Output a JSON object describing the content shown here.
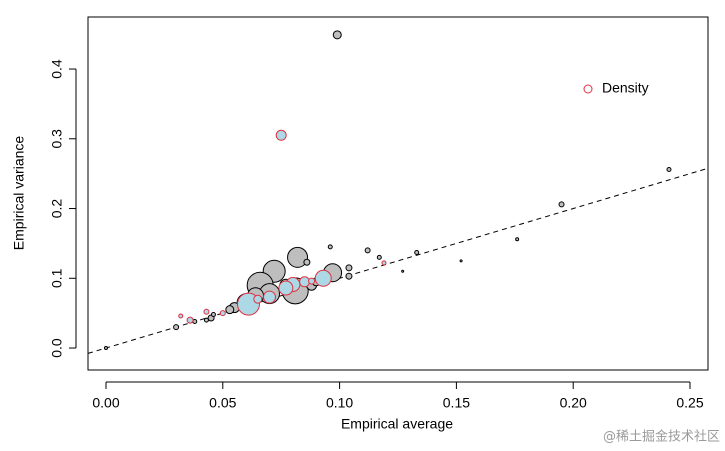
{
  "chart_data": {
    "type": "scatter",
    "x_label": "Empirical average",
    "y_label": "Empirical variance",
    "xlim": [
      -0.0077,
      0.2577
    ],
    "ylim": [
      -0.0315,
      0.4746
    ],
    "xticks": [
      {
        "value": 0,
        "label": "0.00"
      },
      0.05,
      {
        "value": 0.1,
        "label": "0.10"
      },
      0.15,
      {
        "value": 0.2,
        "label": "0.20"
      },
      0.25
    ],
    "yticks": [
      {
        "value": 0,
        "label": "0.0"
      },
      0.1,
      0.2,
      0.3,
      0.4
    ],
    "legend_position": "top-right",
    "series": [
      {
        "color": "#bebebe",
        "stroke": "#000000",
        "legend": false,
        "x": [
          0.099,
          0.241,
          0.195,
          0.176,
          0.152,
          0.133,
          0.127,
          0.112,
          0.117,
          0.104,
          0.104,
          0.097,
          0.096,
          0.082,
          0.072,
          0.066,
          0.081,
          0.07,
          0.064,
          0.06,
          0.055,
          0.053,
          0.086,
          0.088,
          0.09,
          0.077,
          0.045,
          0.043,
          0.038,
          0.03,
          0.0,
          0.046,
          0.05
        ],
        "values": [
          0.449,
          0.256,
          0.206,
          0.156,
          0.125,
          0.137,
          0.11,
          0.14,
          0.13,
          0.115,
          0.103,
          0.108,
          0.145,
          0.13,
          0.11,
          0.09,
          0.082,
          0.078,
          0.075,
          0.065,
          0.058,
          0.055,
          0.123,
          0.09,
          0.095,
          0.09,
          0.043,
          0.04,
          0.038,
          0.03,
          0.0,
          0.048,
          0.05
        ],
        "sizes": [
          4,
          2,
          2.5,
          1.5,
          1,
          2,
          1,
          2.5,
          2,
          3,
          3,
          9,
          2,
          10,
          11,
          13,
          13,
          10,
          8,
          9,
          5,
          4,
          3,
          5,
          4,
          6,
          3,
          2,
          2,
          2.5,
          1.5,
          2,
          2
        ]
      },
      {
        "name": "Density",
        "color": "#add8e6",
        "stroke": "#e0303f",
        "legend": true,
        "x": [
          0.075,
          0.061,
          0.093,
          0.08,
          0.077,
          0.07,
          0.085,
          0.032,
          0.036,
          0.043,
          0.05,
          0.119,
          0.065,
          0.088
        ],
        "values": [
          0.305,
          0.063,
          0.1,
          0.091,
          0.086,
          0.073,
          0.095,
          0.046,
          0.04,
          0.052,
          0.05,
          0.122,
          0.07,
          0.096
        ],
        "sizes": [
          5,
          11,
          8,
          7,
          7,
          6,
          5,
          2,
          3,
          2.5,
          2.5,
          2,
          4,
          3
        ]
      }
    ]
  },
  "watermark": "@稀土掘金技术社区"
}
